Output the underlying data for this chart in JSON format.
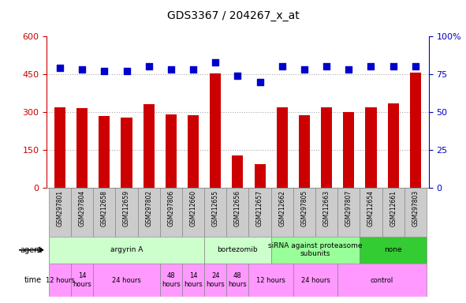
{
  "title": "GDS3367 / 204267_x_at",
  "samples": [
    "GSM297801",
    "GSM297804",
    "GSM212658",
    "GSM212659",
    "GSM297802",
    "GSM297806",
    "GSM212660",
    "GSM212655",
    "GSM212656",
    "GSM212657",
    "GSM212662",
    "GSM297805",
    "GSM212663",
    "GSM297807",
    "GSM212654",
    "GSM212661",
    "GSM297803"
  ],
  "counts": [
    320,
    315,
    285,
    278,
    330,
    292,
    288,
    453,
    128,
    95,
    318,
    288,
    320,
    300,
    318,
    335,
    458
  ],
  "percentiles": [
    79,
    78,
    77,
    77,
    80,
    78,
    78,
    83,
    74,
    70,
    80,
    78,
    80,
    78,
    80,
    80,
    80
  ],
  "ylim_left": [
    0,
    600
  ],
  "ylim_right": [
    0,
    100
  ],
  "yticks_left": [
    0,
    150,
    300,
    450,
    600
  ],
  "yticks_right": [
    0,
    25,
    50,
    75,
    100
  ],
  "bar_color": "#cc0000",
  "dot_color": "#0000cc",
  "agent_groups": [
    {
      "label": "argyrin A",
      "start": 0,
      "end": 7,
      "color": "#ccffcc"
    },
    {
      "label": "bortezomib",
      "start": 7,
      "end": 10,
      "color": "#ccffcc"
    },
    {
      "label": "siRNA against proteasome\nsubunits",
      "start": 10,
      "end": 14,
      "color": "#99ff99"
    },
    {
      "label": "none",
      "start": 14,
      "end": 17,
      "color": "#33cc33"
    }
  ],
  "time_groups": [
    {
      "label": "12 hours",
      "start": 0,
      "end": 1,
      "color": "#ff99ff"
    },
    {
      "label": "14\nhours",
      "start": 1,
      "end": 2,
      "color": "#ff99ff"
    },
    {
      "label": "24 hours",
      "start": 2,
      "end": 5,
      "color": "#ff99ff"
    },
    {
      "label": "48\nhours",
      "start": 5,
      "end": 6,
      "color": "#ff99ff"
    },
    {
      "label": "14\nhours",
      "start": 6,
      "end": 7,
      "color": "#ff99ff"
    },
    {
      "label": "24\nhours",
      "start": 7,
      "end": 8,
      "color": "#ff99ff"
    },
    {
      "label": "48\nhours",
      "start": 8,
      "end": 9,
      "color": "#ff99ff"
    },
    {
      "label": "12 hours",
      "start": 9,
      "end": 11,
      "color": "#ff99ff"
    },
    {
      "label": "24 hours",
      "start": 11,
      "end": 13,
      "color": "#ff99ff"
    },
    {
      "label": "control",
      "start": 13,
      "end": 17,
      "color": "#ff99ff"
    }
  ],
  "bg_color": "#ffffff",
  "grid_color": "#aaaaaa",
  "sample_bg_color": "#cccccc"
}
